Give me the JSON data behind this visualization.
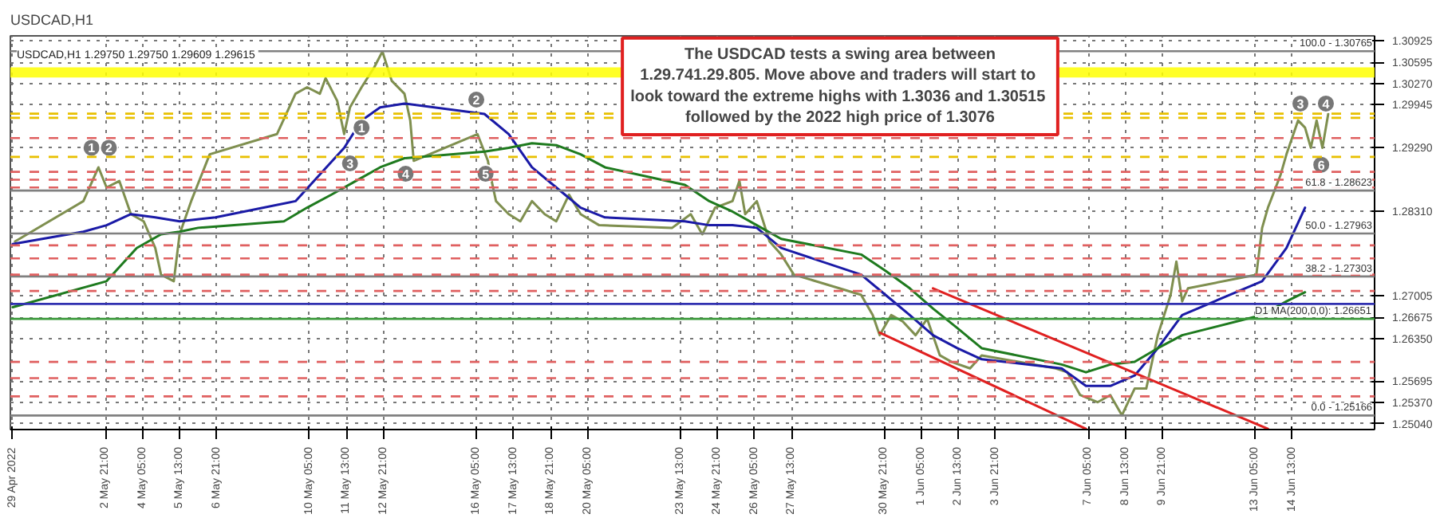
{
  "chart_data": {
    "type": "line",
    "title": "USDCAD,H1",
    "subtitle": "USDCAD,H1  1.29750 1.29750 1.29609 1.29615",
    "xlim": [
      "2022-04-29T11:00",
      "2022-06-17T12:00"
    ],
    "ylim": [
      1.2495,
      1.31
    ],
    "xticks": [
      {
        "value": "2022-04-29T13:00",
        "label": "29 Apr 2022"
      },
      {
        "value": "2022-05-02T21:00",
        "label": "2 May 21:00"
      },
      {
        "value": "2022-05-04T05:00",
        "label": "4 May 05:00"
      },
      {
        "value": "2022-05-05T13:00",
        "label": "5 May 13:00"
      },
      {
        "value": "2022-05-06T21:00",
        "label": "6 May 21:00"
      },
      {
        "value": "2022-05-10T05:00",
        "label": "10 May 05:00"
      },
      {
        "value": "2022-05-11T13:00",
        "label": "11 May 13:00"
      },
      {
        "value": "2022-05-12T21:00",
        "label": "12 May 21:00"
      },
      {
        "value": "2022-05-16T05:00",
        "label": "16 May 05:00"
      },
      {
        "value": "2022-05-17T13:00",
        "label": "17 May 13:00"
      },
      {
        "value": "2022-05-18T21:00",
        "label": "18 May 21:00"
      },
      {
        "value": "2022-05-20T05:00",
        "label": "20 May 05:00"
      },
      {
        "value": "2022-05-23T13:00",
        "label": "23 May 13:00"
      },
      {
        "value": "2022-05-24T21:00",
        "label": "24 May 21:00"
      },
      {
        "value": "2022-05-26T05:00",
        "label": "26 May 05:00"
      },
      {
        "value": "2022-05-27T13:00",
        "label": "27 May 13:00"
      },
      {
        "value": "2022-05-30T21:00",
        "label": "30 May 21:00"
      },
      {
        "value": "2022-06-01T05:00",
        "label": "1 Jun 05:00"
      },
      {
        "value": "2022-06-02T13:00",
        "label": "2 Jun 13:00"
      },
      {
        "value": "2022-06-03T21:00",
        "label": "3 Jun 21:00"
      },
      {
        "value": "2022-06-07T05:00",
        "label": "7 Jun 05:00"
      },
      {
        "value": "2022-06-08T13:00",
        "label": "8 Jun 13:00"
      },
      {
        "value": "2022-06-09T21:00",
        "label": "9 Jun 21:00"
      },
      {
        "value": "2022-06-13T05:00",
        "label": "13 Jun 05:00"
      },
      {
        "value": "2022-06-14T13:00",
        "label": "14 Jun 13:00"
      }
    ],
    "yticks": [
      {
        "value": 1.30925,
        "label": "1.30925"
      },
      {
        "value": 1.30595,
        "label": "1.30595"
      },
      {
        "value": 1.3027,
        "label": "1.30270"
      },
      {
        "value": 1.29945,
        "label": "1.29945"
      },
      {
        "value": 1.2929,
        "label": "1.29290"
      },
      {
        "value": 1.2831,
        "label": "1.28310"
      },
      {
        "value": 1.27005,
        "label": "1.27005"
      },
      {
        "value": 1.26675,
        "label": "1.26675"
      },
      {
        "value": 1.2635,
        "label": "1.26350"
      },
      {
        "value": 1.25695,
        "label": "1.25695"
      },
      {
        "value": 1.2537,
        "label": "1.25370"
      },
      {
        "value": 1.2504,
        "label": "1.25040"
      }
    ],
    "grid": true,
    "series": [
      {
        "color": "#7f8f4f",
        "x": [
          "2022-04-29T15:00",
          "2022-05-02T02:00",
          "2022-05-02T15:00",
          "2022-05-02T22:00",
          "2022-05-03T09:00",
          "2022-05-03T19:00",
          "2022-05-04T06:00",
          "2022-05-04T16:00",
          "2022-05-04T21:00",
          "2022-05-05T08:00",
          "2022-05-05T13:00",
          "2022-05-05T23:00",
          "2022-05-06T15:00",
          "2022-05-09T01:00",
          "2022-05-09T17:00",
          "2022-05-10T03:00",
          "2022-05-10T14:00",
          "2022-05-10T19:00",
          "2022-05-11T05:00",
          "2022-05-11T11:00",
          "2022-05-11T16:00",
          "2022-05-12T02:00",
          "2022-05-12T13:00",
          "2022-05-12T20:00",
          "2022-05-13T04:00",
          "2022-05-13T15:00",
          "2022-05-13T20:00",
          "2022-05-13T23:00",
          "2022-05-16T06:00",
          "2022-05-16T15:00",
          "2022-05-16T17:00",
          "2022-05-16T22:00",
          "2022-05-17T09:00",
          "2022-05-17T19:00",
          "2022-05-18T05:00",
          "2022-05-18T16:00",
          "2022-05-19T02:00",
          "2022-05-19T13:00",
          "2022-05-19T23:00",
          "2022-05-20T15:00",
          "2022-05-23T06:00",
          "2022-05-23T22:00",
          "2022-05-24T08:00",
          "2022-05-24T19:00",
          "2022-05-25T10:00",
          "2022-05-25T16:00",
          "2022-05-25T21:00",
          "2022-05-26T07:00",
          "2022-05-26T18:00",
          "2022-05-27T04:00",
          "2022-05-27T15:00",
          "2022-05-30T01:00",
          "2022-05-30T11:00",
          "2022-05-30T17:00",
          "2022-05-31T03:00",
          "2022-05-31T13:00",
          "2022-06-01T00:00",
          "2022-06-01T10:00",
          "2022-06-01T21:00",
          "2022-06-02T07:00",
          "2022-06-02T23:00",
          "2022-06-03T09:00",
          "2022-06-06T01:00",
          "2022-06-06T11:00",
          "2022-06-06T22:00",
          "2022-06-07T13:00",
          "2022-06-08T00:00",
          "2022-06-08T10:00",
          "2022-06-08T21:00",
          "2022-06-09T07:00",
          "2022-06-09T17:00",
          "2022-06-10T04:00",
          "2022-06-10T09:00",
          "2022-06-10T14:00",
          "2022-06-10T19:00",
          "2022-06-13T06:00",
          "2022-06-13T11:00",
          "2022-06-13T16:00",
          "2022-06-14T03:00",
          "2022-06-14T08:00",
          "2022-06-14T18:00",
          "2022-06-15T00:00",
          "2022-06-15T05:00",
          "2022-06-15T10:00",
          "2022-06-15T15:00",
          "2022-06-15T20:00"
        ],
        "values": [
          1.2784,
          1.2846,
          1.2898,
          1.2867,
          1.2877,
          1.2826,
          1.2815,
          1.2774,
          1.2733,
          1.2723,
          1.2795,
          1.2846,
          1.2918,
          1.2949,
          1.3011,
          1.3021,
          1.3011,
          1.3035,
          1.3,
          1.2949,
          1.299,
          1.3021,
          1.3052,
          1.3076,
          1.3031,
          1.3011,
          1.297,
          1.2908,
          1.2949,
          1.2908,
          1.2887,
          1.2846,
          1.2826,
          1.2815,
          1.2846,
          1.2826,
          1.2815,
          1.2856,
          1.2826,
          1.2809,
          1.2805,
          1.2826,
          1.2795,
          1.2836,
          1.2846,
          1.2877,
          1.2826,
          1.2846,
          1.2784,
          1.2764,
          1.2733,
          1.2702,
          1.2671,
          1.264,
          1.2671,
          1.2661,
          1.264,
          1.2665,
          1.2609,
          1.2599,
          1.2589,
          1.2609,
          1.2589,
          1.2583,
          1.2548,
          1.2537,
          1.2548,
          1.2517,
          1.2558,
          1.2558,
          1.264,
          1.2702,
          1.2753,
          1.2692,
          1.2712,
          1.2733,
          1.2805,
          1.2836,
          1.2887,
          1.2918,
          1.297,
          1.2959,
          1.2928,
          1.297,
          1.2928,
          1.298
        ]
      },
      {
        "color": "#1a1aa6",
        "x": [
          "2022-04-29T13:00",
          "2022-05-02T02:00",
          "2022-05-02T22:00",
          "2022-05-03T19:00",
          "2022-05-04T16:00",
          "2022-05-05T13:00",
          "2022-05-06T20:00",
          "2022-05-09T17:00",
          "2022-05-10T14:00",
          "2022-05-11T11:00",
          "2022-05-12T02:00",
          "2022-05-12T18:00",
          "2022-05-13T15:00",
          "2022-05-16T12:00",
          "2022-05-17T09:00",
          "2022-05-18T05:00",
          "2022-05-19T02:00",
          "2022-05-19T23:00",
          "2022-05-20T20:00",
          "2022-05-23T17:00",
          "2022-05-24T14:00",
          "2022-05-25T10:00",
          "2022-05-26T07:00",
          "2022-05-27T04:00",
          "2022-05-30T01:00",
          "2022-05-30T22:00",
          "2022-05-31T19:00",
          "2022-06-01T15:00",
          "2022-06-02T12:00",
          "2022-06-03T09:00",
          "2022-06-06T06:00",
          "2022-06-07T03:00",
          "2022-06-08T00:00",
          "2022-06-08T21:00",
          "2022-06-09T17:00",
          "2022-06-10T14:00",
          "2022-06-13T11:00",
          "2022-06-14T08:00",
          "2022-06-15T00:00"
        ],
        "values": [
          1.278,
          1.2799,
          1.2809,
          1.2826,
          1.2821,
          1.2815,
          1.2821,
          1.2846,
          1.2887,
          1.2928,
          1.297,
          1.299,
          1.2996,
          1.298,
          1.2949,
          1.2898,
          1.2867,
          1.2836,
          1.2821,
          1.2815,
          1.2809,
          1.2809,
          1.2805,
          1.2774,
          1.2733,
          1.2702,
          1.2671,
          1.264,
          1.262,
          1.2603,
          1.2589,
          1.2562,
          1.2562,
          1.2578,
          1.262,
          1.2671,
          1.2723,
          1.2774,
          1.2836
        ]
      },
      {
        "color": "#1e7a1e",
        "x": [
          "2022-04-29T13:00",
          "2022-05-02T22:00",
          "2022-05-04T00:00",
          "2022-05-04T21:00",
          "2022-05-05T13:00",
          "2022-05-06T05:00",
          "2022-05-09T07:00",
          "2022-05-10T03:00",
          "2022-05-11T00:00",
          "2022-05-11T21:00",
          "2022-05-12T18:00",
          "2022-05-13T15:00",
          "2022-05-16T12:00",
          "2022-05-17T09:00",
          "2022-05-18T05:00",
          "2022-05-19T02:00",
          "2022-05-19T23:00",
          "2022-05-20T20:00",
          "2022-05-23T17:00",
          "2022-05-24T14:00",
          "2022-05-25T10:00",
          "2022-05-26T07:00",
          "2022-05-27T04:00",
          "2022-05-30T01:00",
          "2022-05-30T22:00",
          "2022-05-31T19:00",
          "2022-06-01T15:00",
          "2022-06-02T12:00",
          "2022-06-03T09:00",
          "2022-06-06T06:00",
          "2022-06-07T03:00",
          "2022-06-08T00:00",
          "2022-06-08T21:00",
          "2022-06-09T17:00",
          "2022-06-10T14:00",
          "2022-06-13T11:00",
          "2022-06-14T08:00",
          "2022-06-15T00:00"
        ],
        "values": [
          1.2683,
          1.2723,
          1.2774,
          1.2795,
          1.2799,
          1.2805,
          1.2815,
          1.2836,
          1.2856,
          1.2877,
          1.2898,
          1.2912,
          1.2922,
          1.2928,
          1.2935,
          1.2932,
          1.2918,
          1.2898,
          1.2871,
          1.2846,
          1.283,
          1.2809,
          1.2788,
          1.2764,
          1.2739,
          1.2712,
          1.2681,
          1.2651,
          1.262,
          1.2595,
          1.2583,
          1.2595,
          1.2599,
          1.262,
          1.264,
          1.2671,
          1.2692,
          1.2706
        ]
      },
      {
        "color": "#e02020",
        "x": [
          "2022-05-30T17:00",
          "2022-06-07T03:00"
        ],
        "values": [
          1.2644,
          1.2496
        ]
      },
      {
        "color": "#e02020",
        "x": [
          "2022-06-01T15:00",
          "2022-06-13T16:00"
        ],
        "values": [
          1.2712,
          1.2496
        ]
      }
    ],
    "bands": [
      {
        "axis": "y",
        "from": 1.3036,
        "to": 1.30515,
        "color": "#ffff00"
      }
    ],
    "ref_lines": [
      {
        "axis": "y",
        "value": 1.30765,
        "color": "#808080",
        "line_style": "solid"
      },
      {
        "axis": "y",
        "value": 1.28623,
        "color": "#808080",
        "line_style": "solid"
      },
      {
        "axis": "y",
        "value": 1.27963,
        "color": "#808080",
        "line_style": "solid"
      },
      {
        "axis": "y",
        "value": 1.27303,
        "color": "#808080",
        "line_style": "solid"
      },
      {
        "axis": "y",
        "value": 1.25166,
        "color": "#808080",
        "line_style": "solid"
      },
      {
        "axis": "y",
        "value": 1.26651,
        "label": "D1 MA(200,0,0): 1.26651",
        "color": "#3a9a3a",
        "line_style": "solid"
      },
      {
        "axis": "y",
        "value": 1.2688,
        "color": "#3030b0",
        "line_style": "solid"
      },
      {
        "axis": "y",
        "value": 1.29805,
        "color": "#e8c000",
        "line_style": "dashed"
      },
      {
        "axis": "y",
        "value": 1.2974,
        "color": "#e8c000",
        "line_style": "dashed"
      },
      {
        "axis": "y",
        "value": 1.2914,
        "color": "#e8c000",
        "line_style": "dashed"
      },
      {
        "axis": "y",
        "value": 1.2943,
        "color": "#e06060",
        "line_style": "dashed"
      },
      {
        "axis": "y",
        "value": 1.2891,
        "color": "#e06060",
        "line_style": "dashed"
      },
      {
        "axis": "y",
        "value": 1.2879,
        "color": "#e06060",
        "line_style": "dashed"
      },
      {
        "axis": "y",
        "value": 1.2867,
        "color": "#e06060",
        "line_style": "dashed"
      },
      {
        "axis": "y",
        "value": 1.2778,
        "color": "#e06060",
        "line_style": "dashed"
      },
      {
        "axis": "y",
        "value": 1.2758,
        "color": "#e06060",
        "line_style": "dashed"
      },
      {
        "axis": "y",
        "value": 1.2733,
        "color": "#e06060",
        "line_style": "dashed"
      },
      {
        "axis": "y",
        "value": 1.2708,
        "color": "#e06060",
        "line_style": "dashed"
      },
      {
        "axis": "y",
        "value": 1.2599,
        "color": "#e06060",
        "line_style": "dashed"
      },
      {
        "axis": "y",
        "value": 1.2574,
        "color": "#e06060",
        "line_style": "dashed"
      },
      {
        "axis": "y",
        "value": 1.2546,
        "color": "#e06060",
        "line_style": "dashed"
      }
    ],
    "annotations": [
      "The USDCAD tests a swing area between\n1.29.741.29.805.  Move above and traders will start to\nlook toward the extreme highs  with 1.3036 and 1.30515\nfollowed by the 2022 high price of 1.3076",
      {
        "text": "1",
        "x": "2022-05-02T09:00",
        "y": 1.2928
      },
      {
        "text": "2",
        "x": "2022-05-03T00:00",
        "y": 1.2928
      },
      {
        "text": "3",
        "x": "2022-05-11T16:00",
        "y": 1.2904
      },
      {
        "text": "1",
        "x": "2022-05-12T02:00",
        "y": 1.2959
      },
      {
        "text": "4",
        "x": "2022-05-13T16:00",
        "y": 1.2888
      },
      {
        "text": "2",
        "x": "2022-05-16T05:00",
        "y": 1.3002
      },
      {
        "text": "5",
        "x": "2022-05-16T13:00",
        "y": 1.2888
      },
      {
        "text": "3",
        "x": "2022-06-14T20:00",
        "y": 1.2996
      },
      {
        "text": "4",
        "x": "2022-06-15T18:00",
        "y": 1.2996
      },
      {
        "text": "6",
        "x": "2022-06-15T14:00",
        "y": 1.2902
      },
      {
        "text": "100.0 - 1.30765",
        "x": "2022-06-17T10:00",
        "y": 1.30765
      },
      {
        "text": "61.8 - 1.28623",
        "x": "2022-06-17T10:00",
        "y": 1.28623
      },
      {
        "text": "50.0 - 1.27963",
        "x": "2022-06-17T10:00",
        "y": 1.27963
      },
      {
        "text": "38.2 - 1.27303",
        "x": "2022-06-17T10:00",
        "y": 1.27303
      },
      {
        "text": "0.0 - 1.25166",
        "x": "2022-06-17T10:00",
        "y": 1.25166
      }
    ]
  }
}
